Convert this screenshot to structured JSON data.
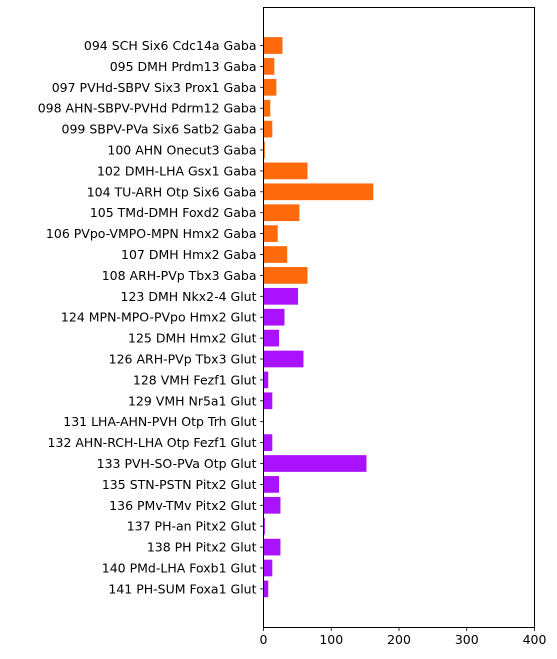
{
  "chart_data": {
    "type": "bar",
    "orientation": "horizontal",
    "title": "",
    "xlabel": "",
    "ylabel": "",
    "xlim": [
      0,
      400
    ],
    "xticks": [
      0,
      100,
      200,
      300,
      400
    ],
    "grid": false,
    "legend": "none",
    "categories": [
      "094 SCH Six6 Cdc14a Gaba",
      "095 DMH Prdm13 Gaba",
      "097 PVHd-SBPV Six3 Prox1 Gaba",
      "098 AHN-SBPV-PVHd Pdrm12 Gaba",
      "099 SBPV-PVa Six6 Satb2 Gaba",
      "100 AHN Onecut3 Gaba",
      "102 DMH-LHA Gsx1 Gaba",
      "104 TU-ARH Otp Six6 Gaba",
      "105 TMd-DMH Foxd2 Gaba",
      "106 PVpo-VMPO-MPN Hmx2 Gaba",
      "107 DMH Hmx2 Gaba",
      "108 ARH-PVp Tbx3 Gaba",
      "123 DMH Nkx2-4 Glut",
      "124 MPN-MPO-PVpo Hmx2 Glut",
      "125 DMH Hmx2 Glut",
      "126 ARH-PVp Tbx3 Glut",
      "128 VMH Fezf1 Glut",
      "129 VMH Nr5a1 Glut",
      "131 LHA-AHN-PVH Otp Trh Glut",
      "132 AHN-RCH-LHA Otp Fezf1 Glut",
      "133 PVH-SO-PVa Otp Glut",
      "135 STN-PSTN Pitx2 Glut",
      "136 PMv-TMv Pitx2 Glut",
      "137 PH-an Pitx2 Glut",
      "138 PH Pitx2 Glut",
      "140 PMd-LHA Foxb1 Glut",
      "141 PH-SUM Foxa1 Glut"
    ],
    "values": [
      28,
      16,
      19,
      10,
      13,
      2,
      65,
      162,
      53,
      21,
      35,
      65,
      51,
      31,
      23,
      59,
      7,
      13,
      0,
      13,
      152,
      23,
      25,
      2,
      25,
      13,
      7
    ],
    "colors": [
      "#ff6a0d",
      "#ff6a0d",
      "#ff6a0d",
      "#ff6a0d",
      "#ff6a0d",
      "#ff6a0d",
      "#ff6a0d",
      "#ff6a0d",
      "#ff6a0d",
      "#ff6a0d",
      "#ff6a0d",
      "#ff6a0d",
      "#aa11ff",
      "#aa11ff",
      "#aa11ff",
      "#aa11ff",
      "#aa11ff",
      "#aa11ff",
      "#aa11ff",
      "#aa11ff",
      "#aa11ff",
      "#aa11ff",
      "#aa11ff",
      "#aa11ff",
      "#aa11ff",
      "#aa11ff",
      "#aa11ff"
    ]
  }
}
